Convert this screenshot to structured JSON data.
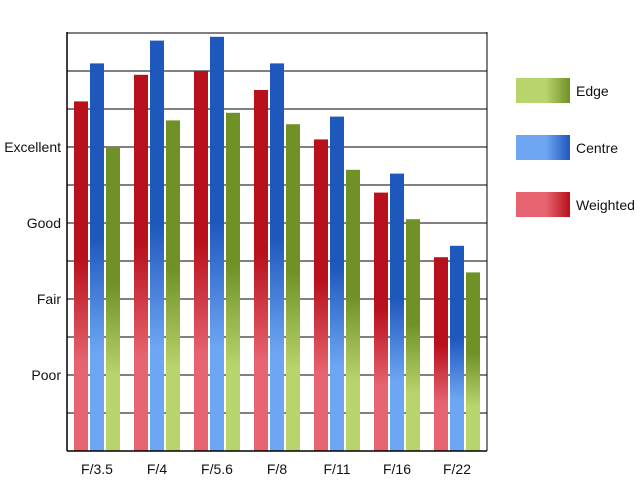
{
  "chart_data": {
    "type": "bar",
    "categories": [
      "F/3.5",
      "F/4",
      "F/5.6",
      "F/8",
      "F/11",
      "F/16",
      "F/22"
    ],
    "y_tick_labels": [
      {
        "value": 2,
        "label": "Poor"
      },
      {
        "value": 4,
        "label": "Fair"
      },
      {
        "value": 6,
        "label": "Good"
      },
      {
        "value": 8,
        "label": "Excellent"
      }
    ],
    "ylim": [
      0,
      10
    ],
    "grid": true,
    "legend_position": "right",
    "series": [
      {
        "name": "Weighted",
        "values": [
          9.2,
          9.9,
          10.0,
          9.5,
          8.2,
          6.8,
          5.1
        ],
        "color_top": "#b8101c",
        "color_bottom": "#e66470"
      },
      {
        "name": "Centre",
        "values": [
          10.2,
          10.8,
          10.9,
          10.2,
          8.8,
          7.3,
          5.4
        ],
        "color_top": "#1f58bd",
        "color_bottom": "#6ea6f3"
      },
      {
        "name": "Edge",
        "values": [
          8.0,
          8.7,
          8.9,
          8.6,
          7.4,
          6.1,
          4.7
        ],
        "color_top": "#6f9126",
        "color_bottom": "#b8d46c"
      }
    ],
    "legend_order": [
      "Edge",
      "Centre",
      "Weighted"
    ]
  }
}
